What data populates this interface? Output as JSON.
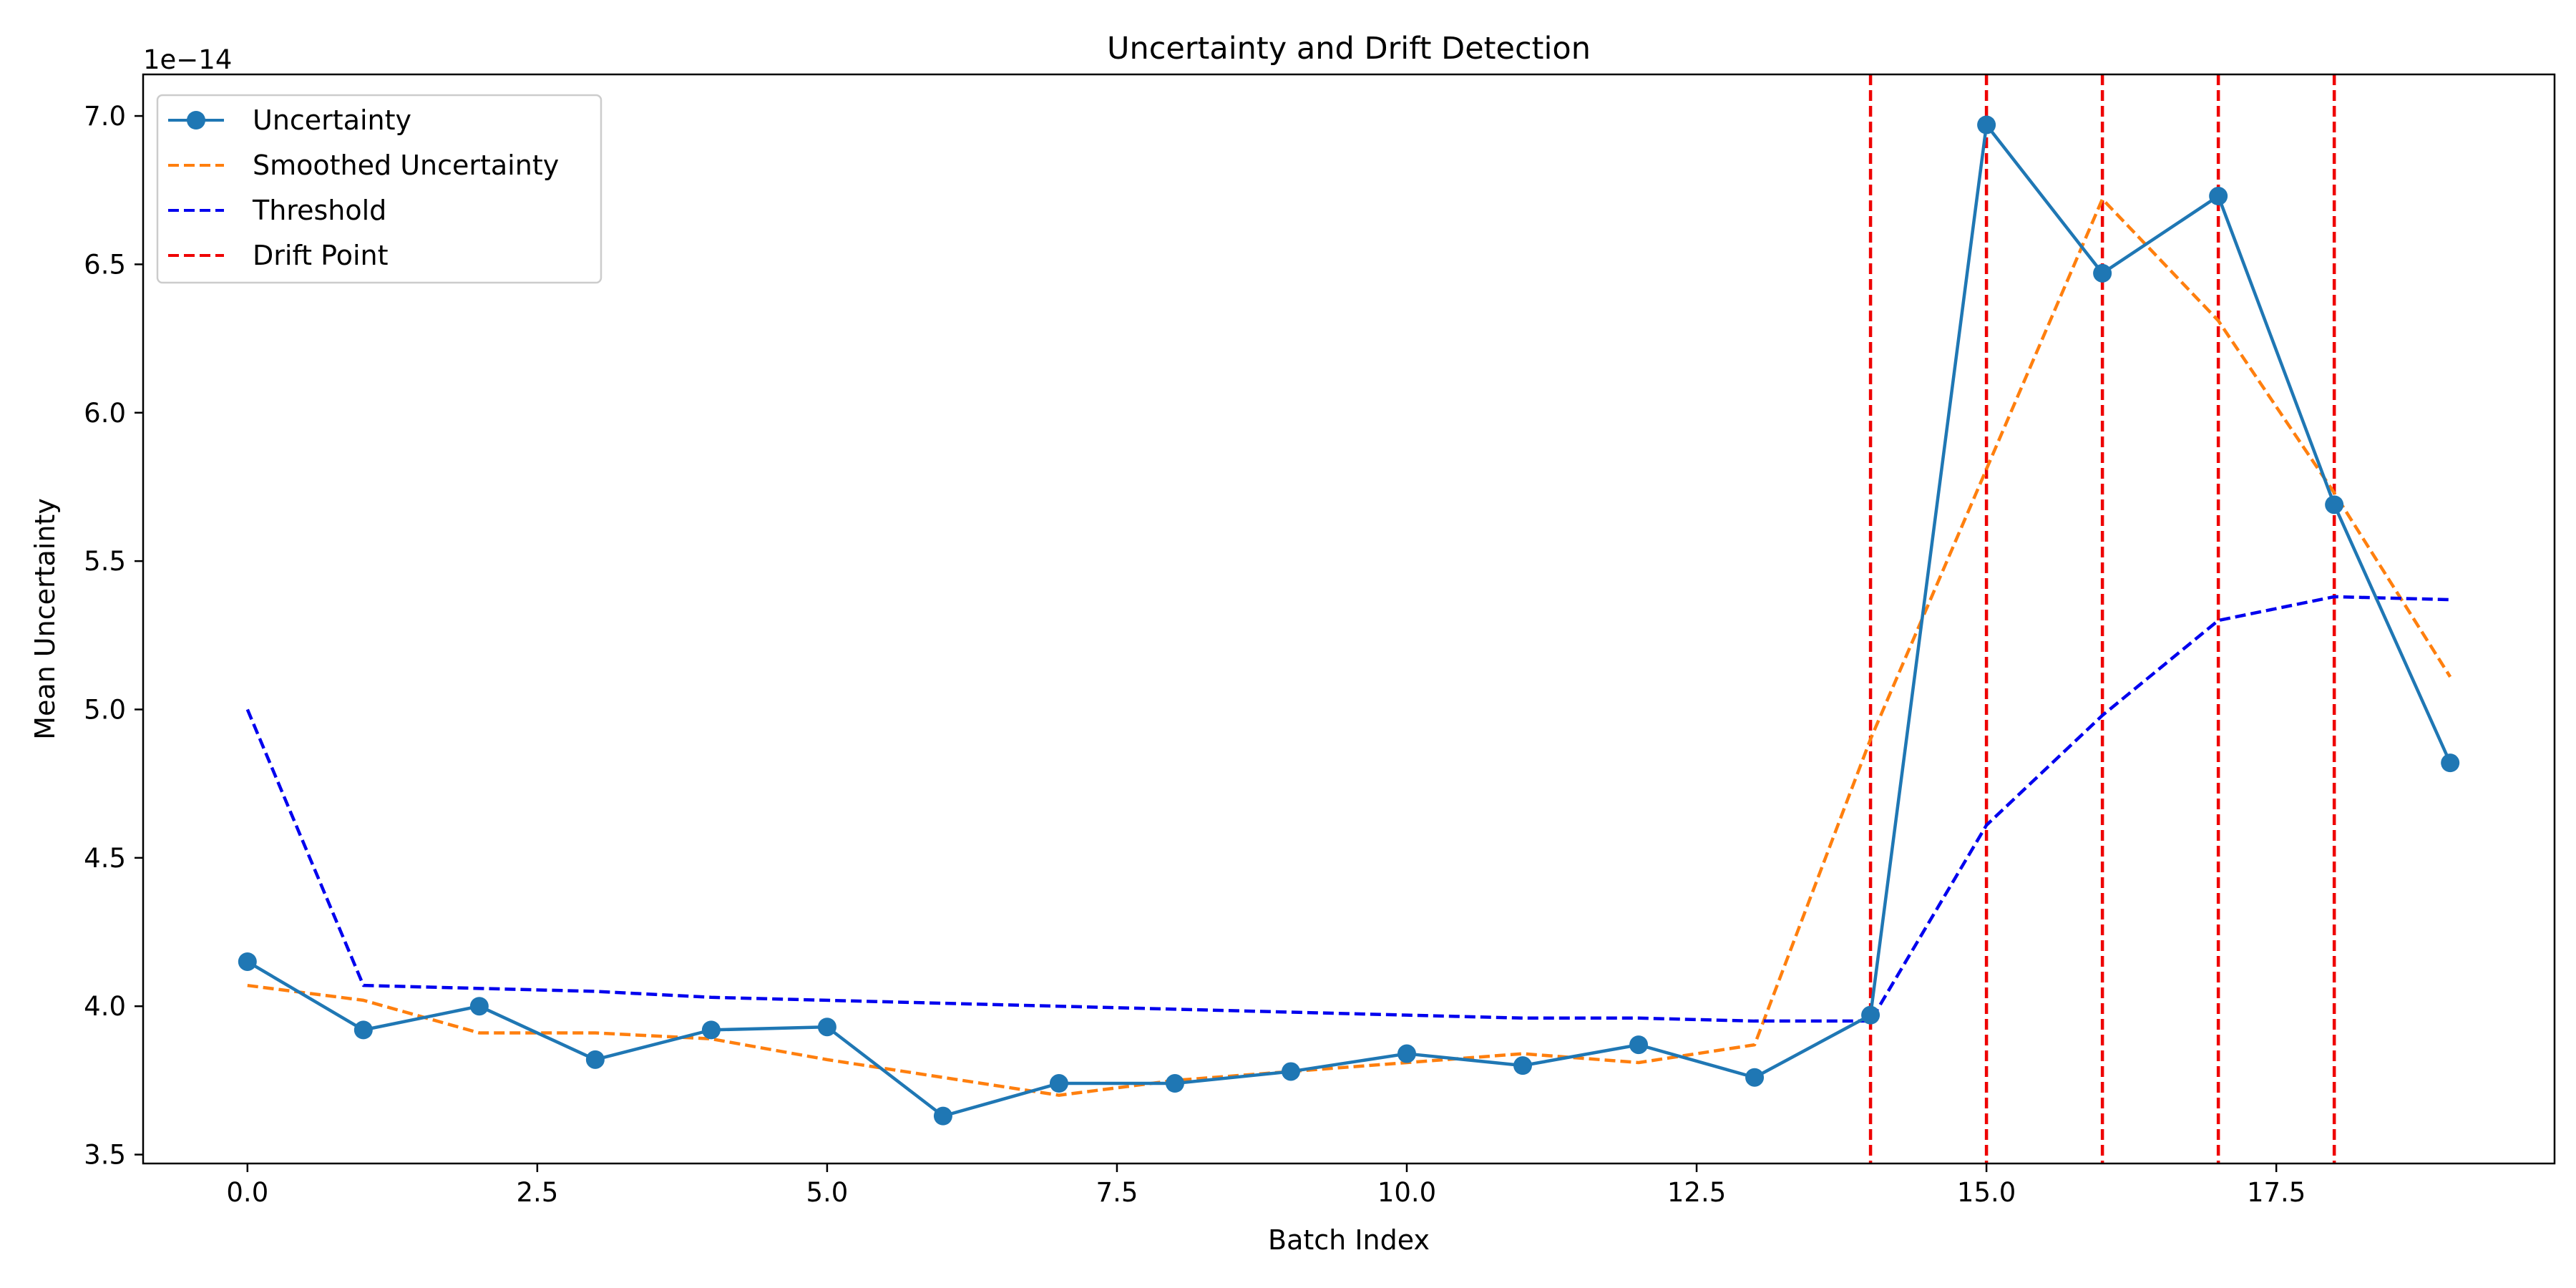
{
  "chart_data": {
    "type": "line",
    "title": "Uncertainty and Drift Detection",
    "xlabel": "Batch Index",
    "ylabel": "Mean Uncertainty",
    "y_offset_label": "1e−14",
    "xlim": [
      -0.9,
      19.9
    ],
    "ylim": [
      3.47,
      7.14
    ],
    "xticks": [
      0.0,
      2.5,
      5.0,
      7.5,
      10.0,
      12.5,
      15.0,
      17.5
    ],
    "xtick_labels": [
      "0.0",
      "2.5",
      "5.0",
      "7.5",
      "10.0",
      "12.5",
      "15.0",
      "17.5"
    ],
    "yticks": [
      3.5,
      4.0,
      4.5,
      5.0,
      5.5,
      6.0,
      6.5,
      7.0
    ],
    "ytick_labels": [
      "3.5",
      "4.0",
      "4.5",
      "5.0",
      "5.5",
      "6.0",
      "6.5",
      "7.0"
    ],
    "grid": false,
    "legend_position": "top-left",
    "series": [
      {
        "name": "Uncertainty",
        "style": "solid-markers",
        "color": "#1f77b4",
        "x": [
          0,
          1,
          2,
          3,
          4,
          5,
          6,
          7,
          8,
          9,
          10,
          11,
          12,
          13,
          14,
          15,
          16,
          17,
          18,
          19
        ],
        "values": [
          4.15,
          3.92,
          4.0,
          3.82,
          3.92,
          3.93,
          3.63,
          3.74,
          3.74,
          3.78,
          3.84,
          3.8,
          3.87,
          3.76,
          3.97,
          6.97,
          6.47,
          6.73,
          5.69,
          4.82
        ]
      },
      {
        "name": "Smoothed Uncertainty",
        "style": "dashed",
        "color": "#ff7f0e",
        "x": [
          0,
          1,
          2,
          3,
          4,
          5,
          6,
          7,
          8,
          9,
          10,
          11,
          12,
          13,
          14,
          15,
          16,
          17,
          18,
          19
        ],
        "values": [
          4.07,
          4.02,
          3.91,
          3.91,
          3.89,
          3.82,
          3.76,
          3.7,
          3.75,
          3.78,
          3.81,
          3.84,
          3.81,
          3.87,
          4.9,
          5.81,
          6.72,
          6.31,
          5.73,
          5.11
        ]
      },
      {
        "name": "Threshold",
        "style": "dashed",
        "color": "#0000ee",
        "x": [
          0,
          1,
          2,
          3,
          4,
          5,
          6,
          7,
          8,
          9,
          10,
          11,
          12,
          13,
          14,
          15,
          16,
          17,
          18,
          19
        ],
        "values": [
          5.0,
          4.07,
          4.06,
          4.05,
          4.03,
          4.02,
          4.01,
          4.0,
          3.99,
          3.98,
          3.97,
          3.96,
          3.96,
          3.95,
          3.95,
          4.61,
          4.98,
          5.3,
          5.38,
          5.37
        ]
      }
    ],
    "drift_points": {
      "name": "Drift Point",
      "style": "dashed-vertical",
      "color": "#ee0000",
      "x": [
        14,
        15,
        16,
        17,
        18
      ]
    }
  }
}
